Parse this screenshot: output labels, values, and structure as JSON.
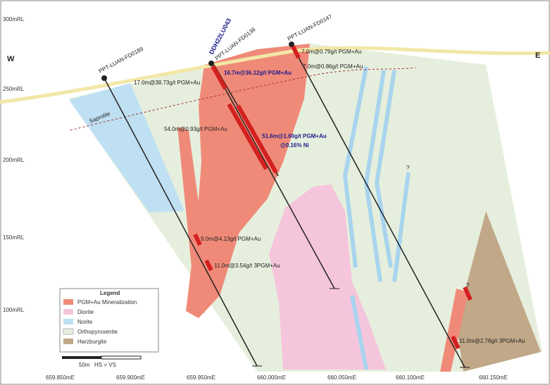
{
  "directions": {
    "west": "W",
    "east": "E"
  },
  "elevation_labels": [
    "300mRL",
    "250mRL",
    "200mRL",
    "150mRL",
    "100mRL"
  ],
  "easting_labels": [
    "659.850mE",
    "659.900mE",
    "659.950mE",
    "660.000mE",
    "660.050mE",
    "660.100mE",
    "660.150mE"
  ],
  "drill_holes": [
    {
      "name": "PPT-LUAN-FD0189"
    },
    {
      "name": "DDH22LU043"
    },
    {
      "name": "PPT-LUAN-FD0136"
    },
    {
      "name": "PPT-LUAN-FD0147"
    }
  ],
  "intercepts": [
    "17.0m@38.73g/t PGM+Au",
    "16.7m@36.12g/t PGM+Au",
    "7.0m@0.79g/t PGM+Au",
    "7.0m@0.86g/t PGM+Au",
    "54.0m@0.93g/t PGM+Au",
    "51.6m@1.60g/t PGM+Au",
    "@0.16% Ni",
    "9.0m@4.13g/t PGM+Au",
    "11.0m@3.54g/t 3PGM+Au",
    "11.0m@2.78g/t 3PGM+Au"
  ],
  "annotations": {
    "saprolite": "Saprolite",
    "uncertain_1": "?",
    "uncertain_2": "?"
  },
  "legend": {
    "title": "Legend",
    "items": [
      {
        "label": "PGM+Au Mineralization"
      },
      {
        "label": "Diorite"
      },
      {
        "label": "Norite"
      },
      {
        "label": "Orthopyroxenite"
      },
      {
        "label": "Harzburgite"
      }
    ]
  },
  "scale_bar": {
    "length": "50m",
    "note": "HS = VS"
  }
}
